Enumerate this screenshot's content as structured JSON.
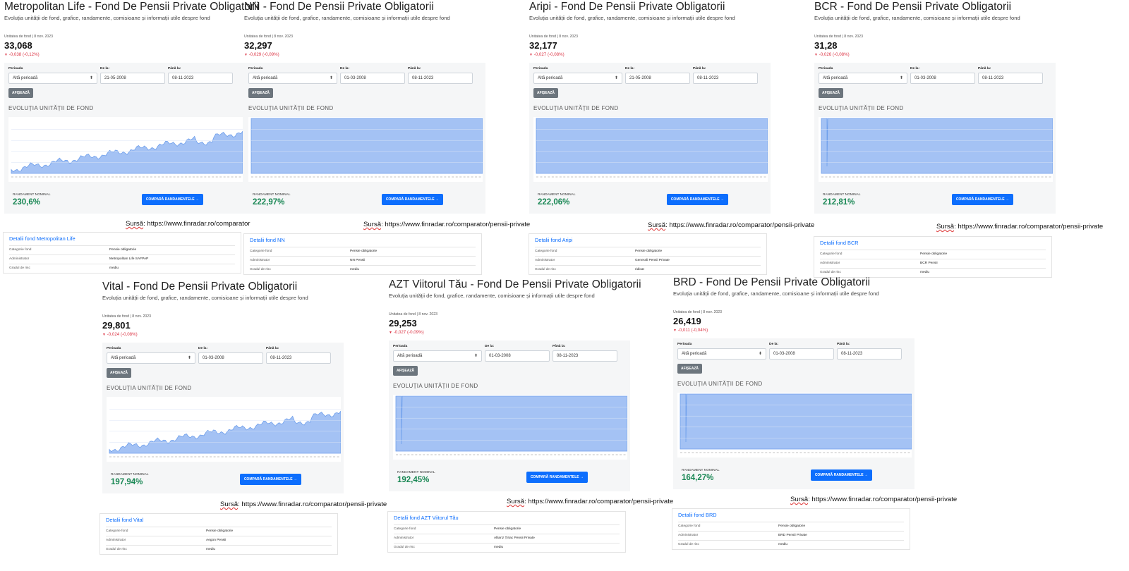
{
  "common": {
    "subtitle": "Evoluția unității de fond, grafice, randamente, comisioane și informații utile despre fond",
    "unit_label": "Unitatea de fond | 8 nov. 2023",
    "period_label": "Perioada",
    "from_label": "De la:",
    "to_label": "Până la:",
    "period_value": "Altă perioadă",
    "to_value": "08-11-2023",
    "show_button": "AFIȘEAZĂ",
    "chart_title": "EVOLUȚIA UNITĂȚII DE FOND",
    "perf_label": "RANDAMENT NOMINAL",
    "compare_button": "COMPARĂ RANDAMENTELE →",
    "source_prefix": "Sursă",
    "source_url": ": https://www.finradar.ro/comparator/pensii-private",
    "source_url_short": ": https://www.finradar.ro/comparator",
    "row_category": "Categorie fond",
    "row_admin": "Administrator",
    "row_risk": "Gradul de risc",
    "category_value": "Pensie obligatorie",
    "colors": {
      "accent": "#0d6efd",
      "positive": "#198754",
      "negative": "#dc3545",
      "chart_fill": "#a4c2f4"
    }
  },
  "funds": [
    {
      "title": "Metropolitan Life - Fond De Pensii Private Obligatorii",
      "unit_value": "33,068",
      "change": "-0,038  (-0,12%)",
      "from": "21-05-2008",
      "perf": "230,6%",
      "details_title": "Detalii fond Metropolitan Life",
      "admin": "Metropolitan Life SAFPAP",
      "risk": "mediu",
      "chart_style": "growth"
    },
    {
      "title": "NN - Fond De Pensii Private Obligatorii",
      "unit_value": "32,297",
      "change": "-0,029  (-0,09%)",
      "from": "01-03-2008",
      "perf": "222,97%",
      "details_title": "Detalii fond NN",
      "admin": "NN Pensii",
      "risk": "mediu",
      "chart_style": "flat"
    },
    {
      "title": "Aripi - Fond De Pensii Private Obligatorii",
      "unit_value": "32,177",
      "change": "-0,027  (-0,08%)",
      "from": "21-05-2008",
      "perf": "222,06%",
      "details_title": "Detalii fond Aripi",
      "admin": "Generali Pensii Private",
      "risk": "ridicat",
      "chart_style": "flat"
    },
    {
      "title": "BCR - Fond De Pensii Private Obligatorii",
      "unit_value": "31,28",
      "change": "-0,026  (-0,08%)",
      "from": "01-03-2008",
      "perf": "212,81%",
      "details_title": "Detalii fond BCR",
      "admin": "BCR Pensii",
      "risk": "mediu",
      "chart_style": "spike"
    },
    {
      "title": "Vital - Fond De Pensii Private Obligatorii",
      "unit_value": "29,801",
      "change": "-0,024  (-0,08%)",
      "from": "01-03-2008",
      "perf": "197,94%",
      "details_title": "Detalii fond Vital",
      "admin": "Aegon Pensii",
      "risk": "mediu",
      "chart_style": "growth"
    },
    {
      "title": "AZT Viitorul Tău - Fond De Pensii Private Obligatorii",
      "unit_value": "29,253",
      "change": "-0,027  (-0,09%)",
      "from": "01-03-2008",
      "perf": "192,45%",
      "details_title": "Detalii fond AZT Viitorul Tău",
      "admin": "Allianz Țiriac Pensii Private",
      "risk": "mediu",
      "chart_style": "spike"
    },
    {
      "title": "BRD - Fond De Pensii Private Obligatorii",
      "unit_value": "26,419",
      "change": "-0,011  (-0,04%)",
      "from": "01-03-2008",
      "perf": "164,27%",
      "details_title": "Detalii fond BRD",
      "admin": "BRD Pensii Private",
      "risk": "mediu",
      "chart_style": "spike"
    }
  ]
}
